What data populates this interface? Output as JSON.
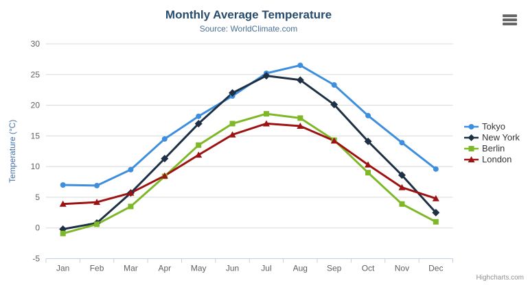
{
  "chart_data": {
    "type": "line",
    "title": "Monthly Average Temperature",
    "subtitle": "Source: WorldClimate.com",
    "categories": [
      "Jan",
      "Feb",
      "Mar",
      "Apr",
      "May",
      "Jun",
      "Jul",
      "Aug",
      "Sep",
      "Oct",
      "Nov",
      "Dec"
    ],
    "series": [
      {
        "name": "Tokyo",
        "color": "#3E8EDE",
        "marker": "circle",
        "values": [
          7.0,
          6.9,
          9.5,
          14.5,
          18.2,
          21.5,
          25.2,
          26.5,
          23.3,
          18.3,
          13.9,
          9.6
        ]
      },
      {
        "name": "New York",
        "color": "#1E3044",
        "marker": "diamond",
        "values": [
          -0.2,
          0.8,
          5.7,
          11.3,
          17.0,
          22.0,
          24.8,
          24.1,
          20.1,
          14.1,
          8.6,
          2.5
        ]
      },
      {
        "name": "Berlin",
        "color": "#7EB828",
        "marker": "square",
        "values": [
          -0.9,
          0.6,
          3.5,
          8.4,
          13.5,
          17.0,
          18.6,
          17.9,
          14.3,
          9.0,
          3.9,
          1.0
        ]
      },
      {
        "name": "London",
        "color": "#9D1212",
        "marker": "triangle",
        "values": [
          3.9,
          4.2,
          5.7,
          8.5,
          11.9,
          15.2,
          17.0,
          16.6,
          14.2,
          10.3,
          6.6,
          4.8
        ]
      }
    ],
    "xlabel": "",
    "ylabel": "Temperature (°C)",
    "ylim": [
      -5,
      30
    ],
    "ytick_step": 5,
    "grid": true,
    "legend_position": "right"
  },
  "icons": {
    "context_menu": "hamburger-menu"
  },
  "credits": {
    "label": "Highcharts.com"
  }
}
